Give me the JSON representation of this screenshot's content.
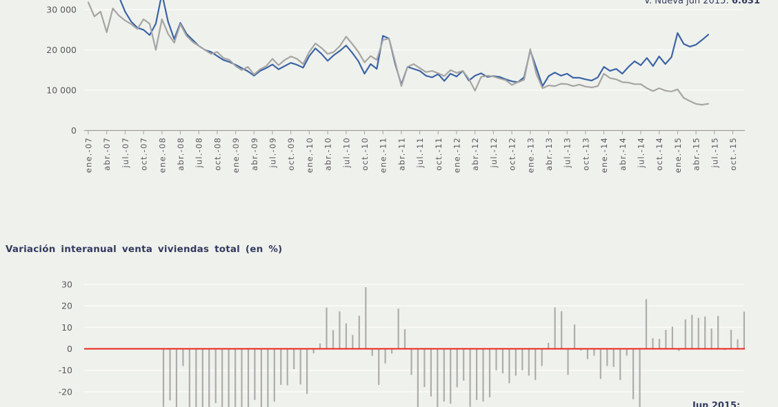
{
  "theme": {
    "background": "#eff1ec",
    "gridline": "#fbfcf9",
    "axis_color": "#a1a19f",
    "label_color": "#5a5a58",
    "accent_navy": "#333a60"
  },
  "chart_data": [
    {
      "type": "line",
      "title": "",
      "annotation": {
        "label": "V. Nueva jun 2015: ",
        "value": "6.631"
      },
      "x_start": "ene.-07",
      "x_end": "jun.-15",
      "frequency": "monthly",
      "ylim_visible": [
        0,
        32400
      ],
      "grid": true,
      "y_ticks": [
        {
          "label": "30 000",
          "value": 30000
        },
        {
          "label": "20 000",
          "value": 20000
        },
        {
          "label": "10 000",
          "value": 10000
        },
        {
          "label": "0",
          "value": 0
        }
      ],
      "x_tick_labels": [
        "ene.-07",
        "abr.-07",
        "jul.-07",
        "oct.-07",
        "ene.-08",
        "abr.-08",
        "jul.-08",
        "oct.-08",
        "ene.-09",
        "abr.-09",
        "jul.-09",
        "oct.-09",
        "ene.-10",
        "abr.-10",
        "jul.-10",
        "oct.-10",
        "ene.-11",
        "abr.-11",
        "jul.-11",
        "oct.-11",
        "ene.-12",
        "abr.-12",
        "jul.-12",
        "oct.-12",
        "ene.-13",
        "abr.-13",
        "jul.-13",
        "oct.-13",
        "ene.-14",
        "abr.-14",
        "jul.-14",
        "oct.-14",
        "ene.-15",
        "abr.-15",
        "jul.-15",
        "oct.-15"
      ],
      "series": [
        {
          "id": "serie-azul",
          "color": "#3b63a5",
          "values": [
            36000,
            34500,
            35200,
            33000,
            34200,
            33200,
            29500,
            27000,
            25500,
            25000,
            23700,
            26500,
            34000,
            27000,
            22700,
            26700,
            24000,
            22500,
            21000,
            20000,
            19500,
            18500,
            17500,
            17000,
            16300,
            15500,
            14700,
            13600,
            14800,
            15500,
            16400,
            15200,
            16000,
            16800,
            16300,
            15600,
            18500,
            20400,
            19000,
            17300,
            18700,
            19800,
            21100,
            19300,
            17200,
            14100,
            16500,
            15300,
            23500,
            22800,
            16500,
            11400,
            15800,
            15300,
            14800,
            13600,
            13200,
            14000,
            12300,
            14100,
            13400,
            14800,
            12400,
            13600,
            14200,
            13300,
            13500,
            13300,
            12700,
            12200,
            12000,
            13200,
            19900,
            15500,
            11000,
            13500,
            14400,
            13600,
            14100,
            13100,
            13100,
            12700,
            12400,
            13200,
            15800,
            14800,
            15300,
            14100,
            15800,
            17200,
            16200,
            18000,
            16000,
            18400,
            16500,
            18200,
            24200,
            21500,
            20800,
            21300,
            22500,
            23800
          ]
        },
        {
          "id": "serie-gris-v-nueva",
          "color": "#a5a4a2",
          "last_value_label": "6.631",
          "values": [
            31800,
            28300,
            29500,
            24400,
            30300,
            28500,
            27300,
            26400,
            25200,
            27600,
            26500,
            20000,
            27600,
            24000,
            21800,
            26400,
            23500,
            22000,
            21000,
            20000,
            19000,
            19500,
            18000,
            17500,
            16000,
            15000,
            15800,
            13900,
            15200,
            16000,
            17800,
            16200,
            17500,
            18400,
            17800,
            16500,
            19500,
            21600,
            20500,
            19000,
            19500,
            21000,
            23300,
            21500,
            19500,
            16900,
            18500,
            17500,
            22500,
            22800,
            17000,
            11000,
            15800,
            16500,
            15500,
            14500,
            14800,
            14200,
            13500,
            15000,
            14300,
            14800,
            12800,
            9900,
            13300,
            13600,
            13400,
            12900,
            12500,
            11300,
            12000,
            12600,
            20200,
            14000,
            10500,
            11200,
            11000,
            11600,
            11500,
            11000,
            11400,
            10900,
            10700,
            11000,
            14100,
            13000,
            12700,
            12000,
            11900,
            11500,
            11500,
            10500,
            9800,
            10500,
            9900,
            9700,
            10200,
            8100,
            7300,
            6600,
            6400,
            6631
          ]
        }
      ]
    },
    {
      "type": "bar",
      "title": "Variación interanual venta viviendas total (en %)",
      "annotation": {
        "label": "Jun 2015:"
      },
      "x_start": "ene.-08",
      "x_end": "jun.-15",
      "frequency": "monthly",
      "ylim_visible": [
        -27,
        33
      ],
      "grid": true,
      "zero_line_color": "#ea2418",
      "bar_color": "#adacaa",
      "y_ticks": [
        {
          "label": "30",
          "value": 30
        },
        {
          "label": "20",
          "value": 20
        },
        {
          "label": "10",
          "value": 10
        },
        {
          "label": "0",
          "value": 0
        },
        {
          "label": "-10",
          "value": -10
        },
        {
          "label": "-20",
          "value": -20
        }
      ],
      "values": [
        -27,
        -24,
        -29,
        -8,
        -30,
        -31,
        -29,
        -33,
        -25.3,
        -32,
        -35,
        -29,
        -38,
        -37,
        -23.8,
        -33,
        -31,
        -24.6,
        -16.8,
        -17,
        -9.5,
        -16.6,
        -21,
        -2.1,
        2.5,
        19.2,
        8.7,
        17.4,
        11.8,
        6.4,
        15.4,
        28.7,
        -3.3,
        -16.8,
        -6.8,
        -2.2,
        18.7,
        9.1,
        -12.1,
        -29,
        -17.8,
        -22.2,
        -28,
        -24.6,
        -25.5,
        -17.9,
        -14.8,
        -27,
        -23.8,
        -24.6,
        -22.6,
        -10,
        -11.4,
        -16,
        -12.5,
        -10,
        -12.5,
        -14.5,
        -8,
        2.8,
        19.2,
        17.5,
        -12.1,
        11.3,
        -0.8,
        -4.8,
        -3.2,
        -14,
        -8,
        -8.4,
        -14.5,
        -3.2,
        -23.5,
        -31,
        23.1,
        4.9,
        4.6,
        8.8,
        10.3,
        -1,
        13.7,
        15.8,
        14.4,
        15,
        9.5,
        15.3,
        -0.5,
        8.8,
        4.4,
        17.3
      ]
    }
  ]
}
